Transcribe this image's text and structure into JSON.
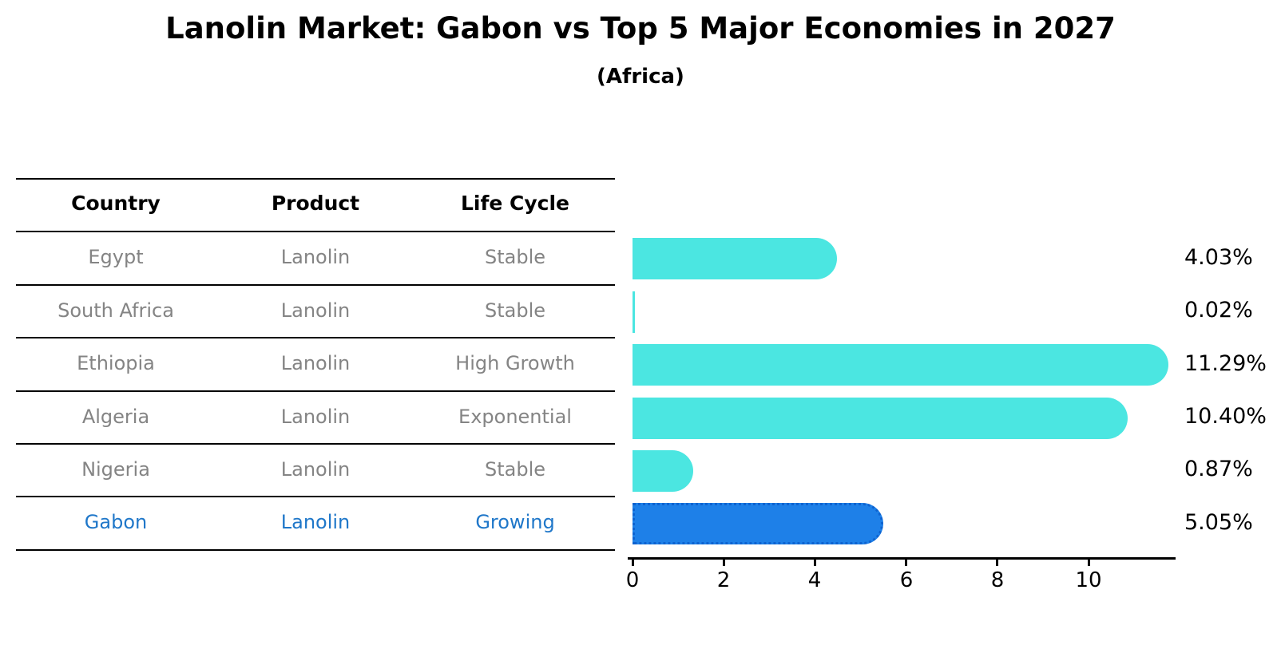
{
  "title": "Lanolin Market: Gabon vs Top 5 Major Economies in 2027",
  "subtitle": "(Africa)",
  "table": {
    "headers": [
      "Country",
      "Product",
      "Life Cycle"
    ],
    "rows": [
      {
        "country": "Egypt",
        "product": "Lanolin",
        "life_cycle": "Stable",
        "highlight": false
      },
      {
        "country": "South Africa",
        "product": "Lanolin",
        "life_cycle": "Stable",
        "highlight": false
      },
      {
        "country": "Ethiopia",
        "product": "Lanolin",
        "life_cycle": "High Growth",
        "highlight": false
      },
      {
        "country": "Algeria",
        "product": "Lanolin",
        "life_cycle": "Exponential",
        "highlight": false
      },
      {
        "country": "Nigeria",
        "product": "Lanolin",
        "life_cycle": "Stable",
        "highlight": false
      },
      {
        "country": "Gabon",
        "product": "Lanolin",
        "life_cycle": "Growing",
        "highlight": true
      }
    ]
  },
  "chart_data": {
    "type": "bar",
    "orientation": "horizontal",
    "title": "Lanolin Market: Gabon vs Top 5 Major Economies in 2027",
    "subtitle": "(Africa)",
    "categories": [
      "Egypt",
      "South Africa",
      "Ethiopia",
      "Algeria",
      "Nigeria",
      "Gabon"
    ],
    "values": [
      4.03,
      0.02,
      11.29,
      10.4,
      0.87,
      5.05
    ],
    "value_labels": [
      "4.03%",
      "0.02%",
      "11.29%",
      "10.40%",
      "0.87%",
      "5.05%"
    ],
    "xticks": [
      0,
      2,
      4,
      6,
      8,
      10
    ],
    "xlim": [
      0,
      11.9
    ],
    "xlabel": "",
    "ylabel": "",
    "grid": false,
    "legend": "none",
    "bar_color": "#4BE6E1",
    "highlight_bar_color": "#1E80E8",
    "highlight_border_color": "#0E63D0",
    "highlight_border_style": "dotted",
    "highlight_index": 5
  },
  "colors": {
    "background": "#ffffff",
    "header_text": "#000000",
    "row_text": "#848484",
    "highlight_text": "#1F77C9",
    "bar": "#4BE6E1",
    "highlight_bar": "#1E80E8",
    "axis": "#000000"
  }
}
